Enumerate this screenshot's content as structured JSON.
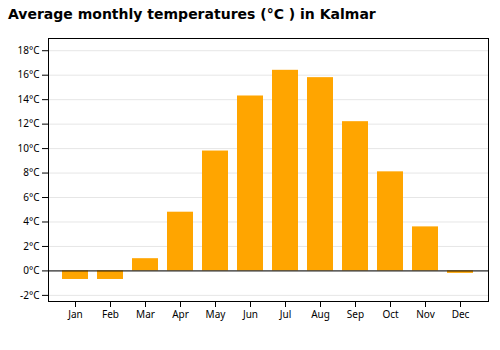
{
  "chart_data": {
    "type": "bar",
    "title": "Average monthly temperatures (°C ) in Kalmar",
    "categories": [
      "Jan",
      "Feb",
      "Mar",
      "Apr",
      "May",
      "Jun",
      "Jul",
      "Aug",
      "Sep",
      "Oct",
      "Nov",
      "Dec"
    ],
    "values": [
      -0.7,
      -0.7,
      1.0,
      4.8,
      9.8,
      14.3,
      16.4,
      15.8,
      12.2,
      8.1,
      3.6,
      -0.2
    ],
    "color": "#FFA500",
    "ylim": [
      -2.5,
      19
    ],
    "yticks": [
      {
        "value": -2,
        "label": "-2°C"
      },
      {
        "value": 0,
        "label": "0°C"
      },
      {
        "value": 2,
        "label": "2°C"
      },
      {
        "value": 4,
        "label": "4°C"
      },
      {
        "value": 6,
        "label": "6°C"
      },
      {
        "value": 8,
        "label": "8°C"
      },
      {
        "value": 10,
        "label": "10°C"
      },
      {
        "value": 12,
        "label": "12°C"
      },
      {
        "value": 14,
        "label": "14°C"
      },
      {
        "value": 16,
        "label": "16°C"
      },
      {
        "value": 18,
        "label": "18°C"
      }
    ],
    "grid": true
  }
}
